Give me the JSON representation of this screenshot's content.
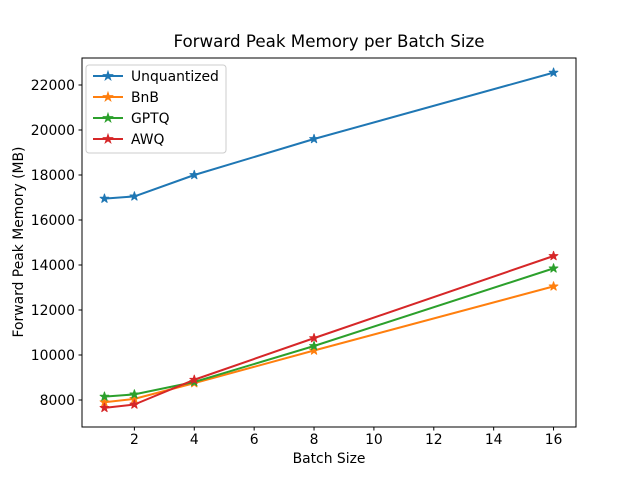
{
  "chart_data": {
    "type": "line",
    "title": "Forward Peak Memory per Batch Size",
    "xlabel": "Batch Size",
    "ylabel": "Forward Peak Memory (MB)",
    "x": [
      1,
      2,
      4,
      8,
      16
    ],
    "series": [
      {
        "name": "Unquantized",
        "color": "#1f77b4",
        "marker": "star",
        "values": [
          16950,
          17050,
          18000,
          19600,
          22550
        ]
      },
      {
        "name": "BnB",
        "color": "#ff7f0e",
        "marker": "star",
        "values": [
          7900,
          8050,
          8750,
          10200,
          13050
        ]
      },
      {
        "name": "GPTQ",
        "color": "#2ca02c",
        "marker": "star",
        "values": [
          8150,
          8250,
          8800,
          10400,
          13850
        ]
      },
      {
        "name": "AWQ",
        "color": "#d62728",
        "marker": "star",
        "values": [
          7650,
          7800,
          8900,
          10750,
          14400
        ]
      }
    ],
    "xlim": [
      0.25,
      16.75
    ],
    "ylim": [
      6800,
      23200
    ],
    "xticks": [
      2,
      4,
      6,
      8,
      10,
      12,
      14,
      16
    ],
    "yticks": [
      8000,
      10000,
      12000,
      14000,
      16000,
      18000,
      20000,
      22000
    ],
    "grid": false,
    "legend": {
      "position": "upper left",
      "entries": [
        "Unquantized",
        "BnB",
        "GPTQ",
        "AWQ"
      ],
      "border_color": "#cccccc",
      "background": "#ffffff"
    },
    "frame_color": "#000000",
    "background": "#ffffff"
  }
}
